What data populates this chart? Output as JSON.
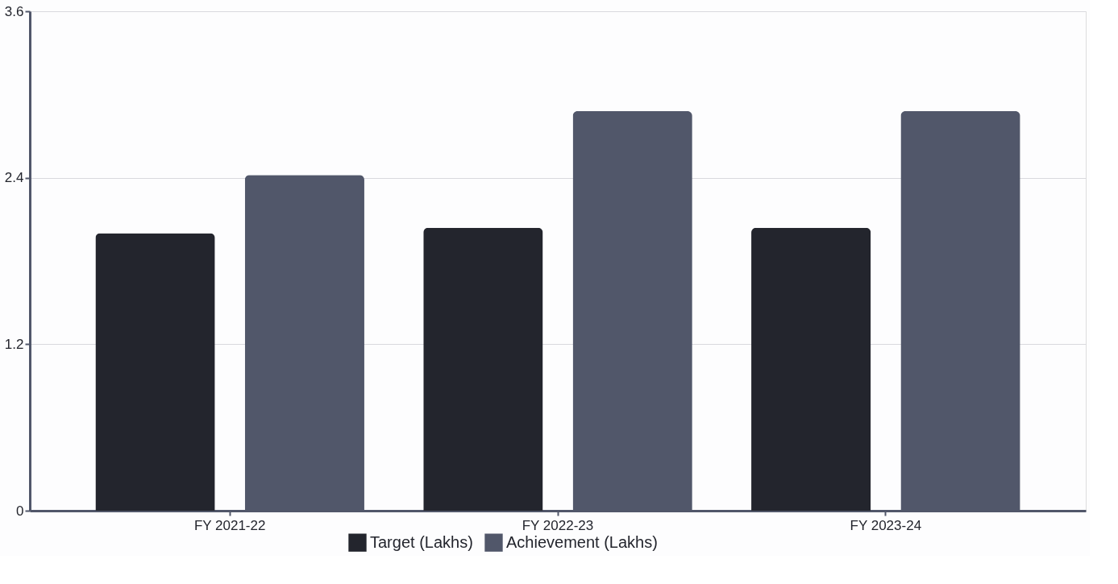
{
  "chart_data": {
    "type": "bar",
    "categories": [
      "FY 2021-22",
      "FY 2022-23",
      "FY 2023-24"
    ],
    "series": [
      {
        "name": "Target (Lakhs)",
        "color": "#23252d",
        "values": [
          2.0,
          2.04,
          2.04
        ]
      },
      {
        "name": "Achievement (Lakhs)",
        "color": "#51576a",
        "values": [
          2.42,
          2.88,
          2.88
        ]
      }
    ],
    "ylim": [
      0,
      3.6
    ],
    "yticks": [
      0,
      1.2,
      2.4,
      3.6
    ],
    "grid": "y",
    "legend": "bottom"
  }
}
